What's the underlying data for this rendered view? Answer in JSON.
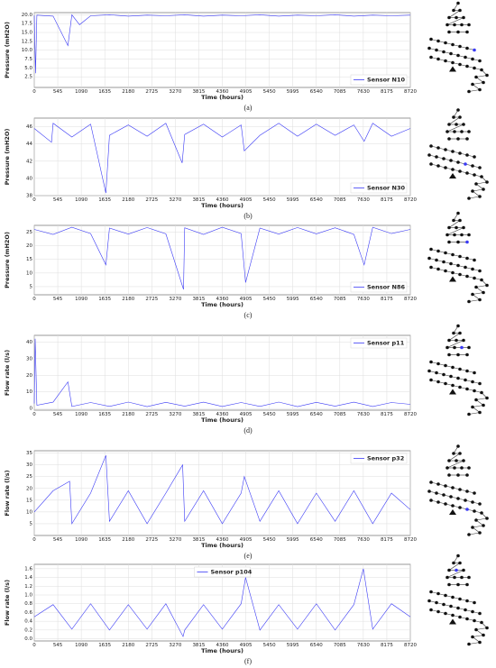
{
  "chart_data": [
    {
      "type": "line",
      "caption": "(a)",
      "xlabel": "Time (hours)",
      "ylabel": "Pressure (mH2O)",
      "legend": "lower right",
      "grid": true,
      "xlim": [
        0,
        8720
      ],
      "xticks": [
        0,
        545,
        1090,
        1635,
        2180,
        2725,
        3270,
        3815,
        4360,
        4905,
        5450,
        5995,
        6540,
        7085,
        7630,
        8175,
        8720
      ],
      "ylim": [
        -0.5,
        20.6
      ],
      "yticks": [
        2.5,
        {
          "value": 5,
          "label": "5.0"
        },
        7.5,
        {
          "value": 10,
          "label": "10.0"
        },
        12.5,
        {
          "value": 15,
          "label": "15.0"
        },
        17.5,
        {
          "value": 20,
          "label": "20.0"
        }
      ],
      "x": [
        0,
        30,
        60,
        436,
        780,
        872,
        1050,
        1308,
        1744,
        2180,
        2616,
        3052,
        3488,
        3924,
        4360,
        4796,
        5232,
        5668,
        6104,
        6540,
        6976,
        7412,
        7848,
        8284,
        8720
      ],
      "series": [
        {
          "name": "Sensor N10",
          "color": "#3a3af5",
          "values": [
            19.8,
            3.5,
            19.9,
            19.6,
            11.3,
            20.0,
            17.2,
            19.7,
            20.0,
            19.6,
            19.9,
            19.7,
            20.0,
            19.6,
            19.9,
            19.7,
            20.0,
            19.6,
            19.9,
            19.7,
            20.0,
            19.6,
            19.9,
            19.7,
            19.9
          ]
        }
      ]
    },
    {
      "type": "line",
      "caption": "(b)",
      "xlabel": "Time (hours)",
      "ylabel": "Pressure (mH2O)",
      "legend": "lower right",
      "grid": true,
      "xlim": [
        0,
        8720
      ],
      "xticks": [
        0,
        545,
        1090,
        1635,
        2180,
        2725,
        3270,
        3815,
        4360,
        4905,
        5450,
        5995,
        6540,
        7085,
        7630,
        8175,
        8720
      ],
      "ylim": [
        38,
        47
      ],
      "yticks": [
        38,
        40,
        42,
        44,
        46
      ],
      "x": [
        0,
        400,
        436,
        872,
        1308,
        1660,
        1744,
        2180,
        2616,
        3052,
        3430,
        3488,
        3924,
        4360,
        4796,
        4870,
        5232,
        5668,
        6104,
        6540,
        6976,
        7412,
        7650,
        7848,
        8284,
        8720
      ],
      "series": [
        {
          "name": "Sensor N30",
          "color": "#3a3af5",
          "values": [
            45.8,
            44.2,
            46.4,
            44.8,
            46.3,
            38.3,
            45.0,
            46.2,
            44.9,
            46.4,
            41.8,
            45.1,
            46.3,
            44.8,
            46.2,
            43.2,
            45.0,
            46.4,
            44.9,
            46.3,
            45.0,
            46.2,
            44.3,
            46.4,
            44.9,
            45.8
          ]
        }
      ]
    },
    {
      "type": "line",
      "caption": "(c)",
      "xlabel": "Time (hours)",
      "ylabel": "Pressure (mH2O)",
      "legend": "lower right",
      "grid": true,
      "xlim": [
        0,
        8720
      ],
      "xticks": [
        0,
        545,
        1090,
        1635,
        2180,
        2725,
        3270,
        3815,
        4360,
        4905,
        5450,
        5995,
        6540,
        7085,
        7630,
        8175,
        8720
      ],
      "ylim": [
        2,
        27.5
      ],
      "yticks": [
        5,
        10,
        15,
        20,
        25
      ],
      "x": [
        0,
        436,
        872,
        1308,
        1660,
        1744,
        2180,
        2616,
        3052,
        3460,
        3488,
        3924,
        4360,
        4796,
        4900,
        5232,
        5668,
        6104,
        6540,
        6976,
        7412,
        7650,
        7848,
        8284,
        8720
      ],
      "series": [
        {
          "name": "Sensor N86",
          "color": "#3a3af5",
          "values": [
            26,
            24.2,
            26.8,
            24.5,
            13,
            26.5,
            24.3,
            26.7,
            24.4,
            4,
            26.6,
            24.2,
            26.8,
            24.5,
            6.5,
            26.5,
            24.3,
            26.7,
            24.4,
            26.6,
            24.2,
            13,
            26.8,
            24.5,
            26
          ]
        }
      ]
    },
    {
      "type": "line",
      "caption": "(d)",
      "xlabel": "Time (hours)",
      "ylabel": "Flow rate (l/s)",
      "legend": "upper right",
      "grid": true,
      "xlim": [
        0,
        8720
      ],
      "xticks": [
        0,
        545,
        1090,
        1635,
        2180,
        2725,
        3270,
        3815,
        4360,
        4905,
        5450,
        5995,
        6540,
        7085,
        7630,
        8175,
        8720
      ],
      "ylim": [
        -1,
        44
      ],
      "yticks": [
        0,
        10,
        20,
        30,
        40
      ],
      "x": [
        0,
        20,
        60,
        436,
        780,
        872,
        1308,
        1744,
        2180,
        2616,
        3052,
        3488,
        3924,
        4360,
        4796,
        5232,
        5668,
        6104,
        6540,
        6976,
        7412,
        7848,
        8284,
        8720
      ],
      "series": [
        {
          "name": "Sensor p11",
          "color": "#3a3af5",
          "values": [
            3,
            42,
            2,
            3.8,
            16,
            1.2,
            3.6,
            1.3,
            3.9,
            1.1,
            3.7,
            1.4,
            3.8,
            1.2,
            3.6,
            1.3,
            3.9,
            1.1,
            3.7,
            1.4,
            3.8,
            1.2,
            3.6,
            2.5
          ]
        }
      ]
    },
    {
      "type": "line",
      "caption": "(e)",
      "xlabel": "Time (hours)",
      "ylabel": "Flow rate (l/s)",
      "legend": "upper right",
      "grid": true,
      "xlim": [
        0,
        8720
      ],
      "xticks": [
        0,
        545,
        1090,
        1635,
        2180,
        2725,
        3270,
        3815,
        4360,
        4905,
        5450,
        5995,
        6540,
        7085,
        7630,
        8175,
        8720
      ],
      "ylim": [
        0,
        36
      ],
      "yticks": [
        5,
        10,
        15,
        20,
        25,
        30,
        35
      ],
      "x": [
        0,
        436,
        820,
        872,
        1308,
        1660,
        1744,
        2180,
        2616,
        3052,
        3440,
        3488,
        3924,
        4360,
        4796,
        4870,
        5232,
        5668,
        6104,
        6540,
        6976,
        7412,
        7848,
        8284,
        8720
      ],
      "series": [
        {
          "name": "Sensor p32",
          "color": "#3a3af5",
          "values": [
            10,
            19,
            23,
            5,
            18,
            34,
            6,
            19,
            5,
            18,
            30,
            6,
            19,
            5,
            18,
            25,
            6,
            19,
            5,
            18,
            6,
            19,
            5,
            18,
            11
          ]
        }
      ]
    },
    {
      "type": "line",
      "caption": "(f)",
      "xlabel": "Time (hours)",
      "ylabel": "Flow rate (l/s)",
      "legend": "upper center",
      "grid": true,
      "xlim": [
        0,
        8720
      ],
      "xticks": [
        0,
        545,
        1090,
        1635,
        2180,
        2725,
        3270,
        3815,
        4360,
        4905,
        5450,
        5995,
        6540,
        7085,
        7630,
        8175,
        8720
      ],
      "ylim": [
        -0.05,
        1.7
      ],
      "yticks": [
        {
          "value": 0,
          "label": "0.0"
        },
        0.2,
        0.4,
        0.6,
        0.8,
        {
          "value": 1,
          "label": "1.0"
        },
        1.2,
        1.4,
        1.6
      ],
      "x": [
        0,
        436,
        872,
        1308,
        1744,
        2180,
        2616,
        3052,
        3450,
        3488,
        3924,
        4360,
        4796,
        4900,
        5232,
        5668,
        6104,
        6540,
        6976,
        7412,
        7630,
        7848,
        8284,
        8720
      ],
      "series": [
        {
          "name": "Sensor p104",
          "color": "#3a3af5",
          "values": [
            0.5,
            0.78,
            0.22,
            0.8,
            0.2,
            0.78,
            0.22,
            0.8,
            0.05,
            0.2,
            0.78,
            0.22,
            0.8,
            1.4,
            0.2,
            0.78,
            0.22,
            0.8,
            0.2,
            0.78,
            1.6,
            0.22,
            0.8,
            0.5
          ]
        }
      ]
    }
  ]
}
